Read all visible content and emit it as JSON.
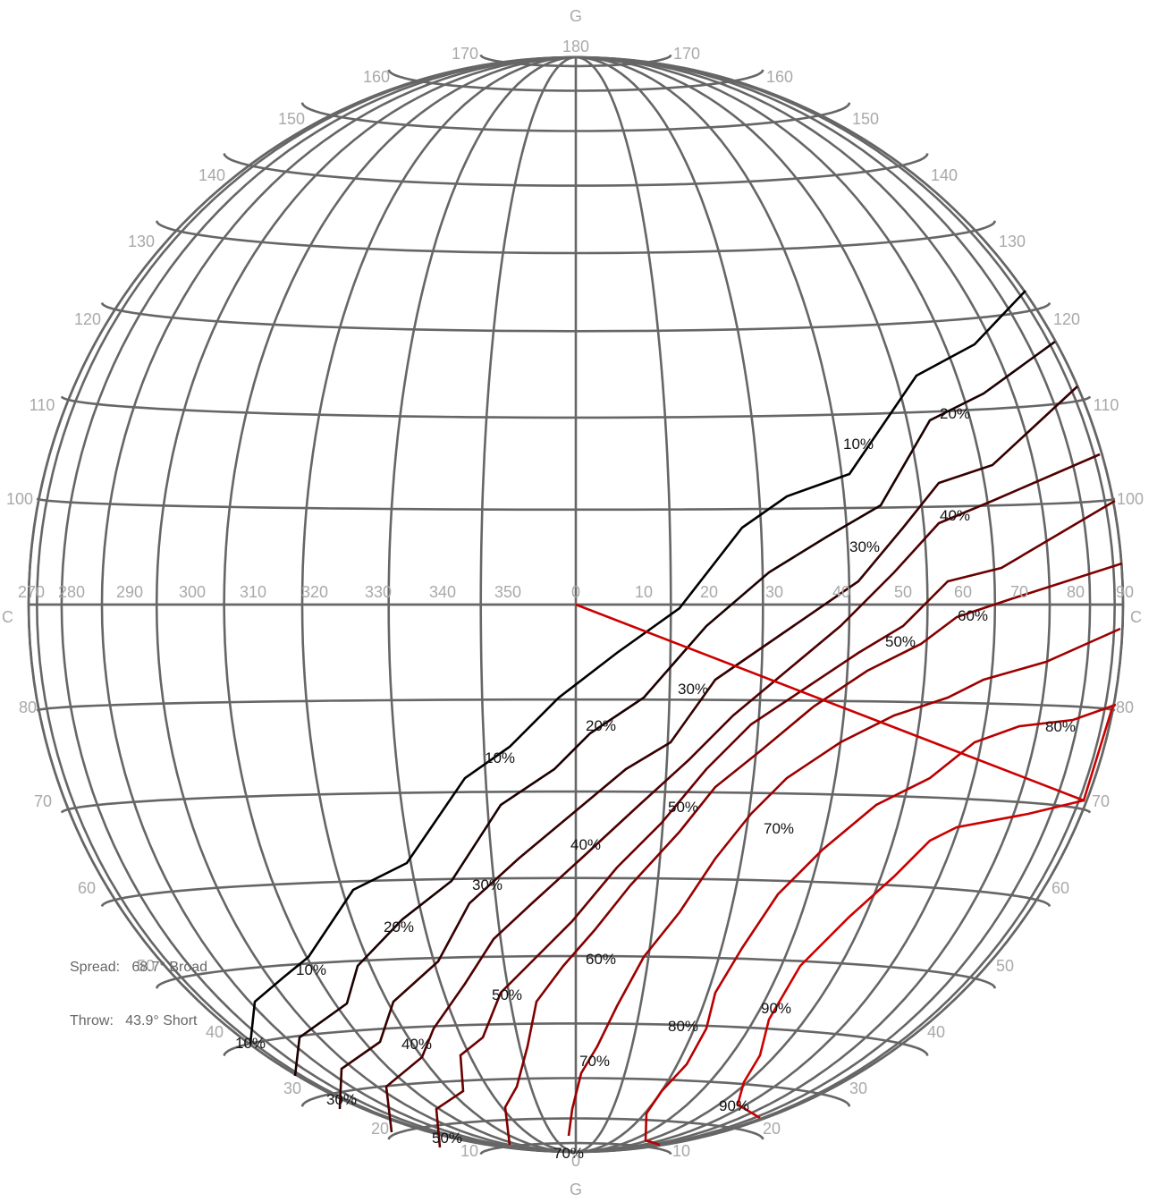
{
  "axis_letters": {
    "top": "G",
    "bottom": "G",
    "left": "C",
    "right": "C"
  },
  "equator_labels": [
    "270",
    "280",
    "290",
    "300",
    "310",
    "320",
    "330",
    "340",
    "350",
    "0",
    "10",
    "20",
    "30",
    "40",
    "50",
    "60",
    "70",
    "80",
    "90"
  ],
  "rim_labels": [
    "10",
    "20",
    "30",
    "40",
    "50",
    "60",
    "70",
    "80",
    "100",
    "110",
    "120",
    "130",
    "140",
    "150",
    "160",
    "170",
    "180",
    "170",
    "160",
    "150",
    "140",
    "130",
    "120",
    "110",
    "100",
    "80",
    "70",
    "60",
    "50",
    "40",
    "30",
    "20",
    "10",
    "0"
  ],
  "contours": [
    {
      "level": "10%",
      "color": "#000000"
    },
    {
      "level": "20%",
      "color": "#1c0000"
    },
    {
      "level": "30%",
      "color": "#360000"
    },
    {
      "level": "40%",
      "color": "#500000"
    },
    {
      "level": "50%",
      "color": "#6a0000"
    },
    {
      "level": "60%",
      "color": "#840000"
    },
    {
      "level": "70%",
      "color": "#9e0000"
    },
    {
      "level": "80%",
      "color": "#b80000"
    },
    {
      "level": "90%",
      "color": "#cc0000"
    }
  ],
  "contour_labels": [
    "10%",
    "10%",
    "10%",
    "10%",
    "20%",
    "20%",
    "20%",
    "30%",
    "30%",
    "30%",
    "30%",
    "40%",
    "40%",
    "40%",
    "50%",
    "50%",
    "50%",
    "50%",
    "60%",
    "60%",
    "70%",
    "70%",
    "70%",
    "80%",
    "80%",
    "90%",
    "90%"
  ],
  "beam_line_color": "#cc0000",
  "info": {
    "spread_label": "Spread:",
    "spread_value": "68.7° Broad",
    "throw_label": "Throw:",
    "throw_value": "43.9° Short"
  }
}
